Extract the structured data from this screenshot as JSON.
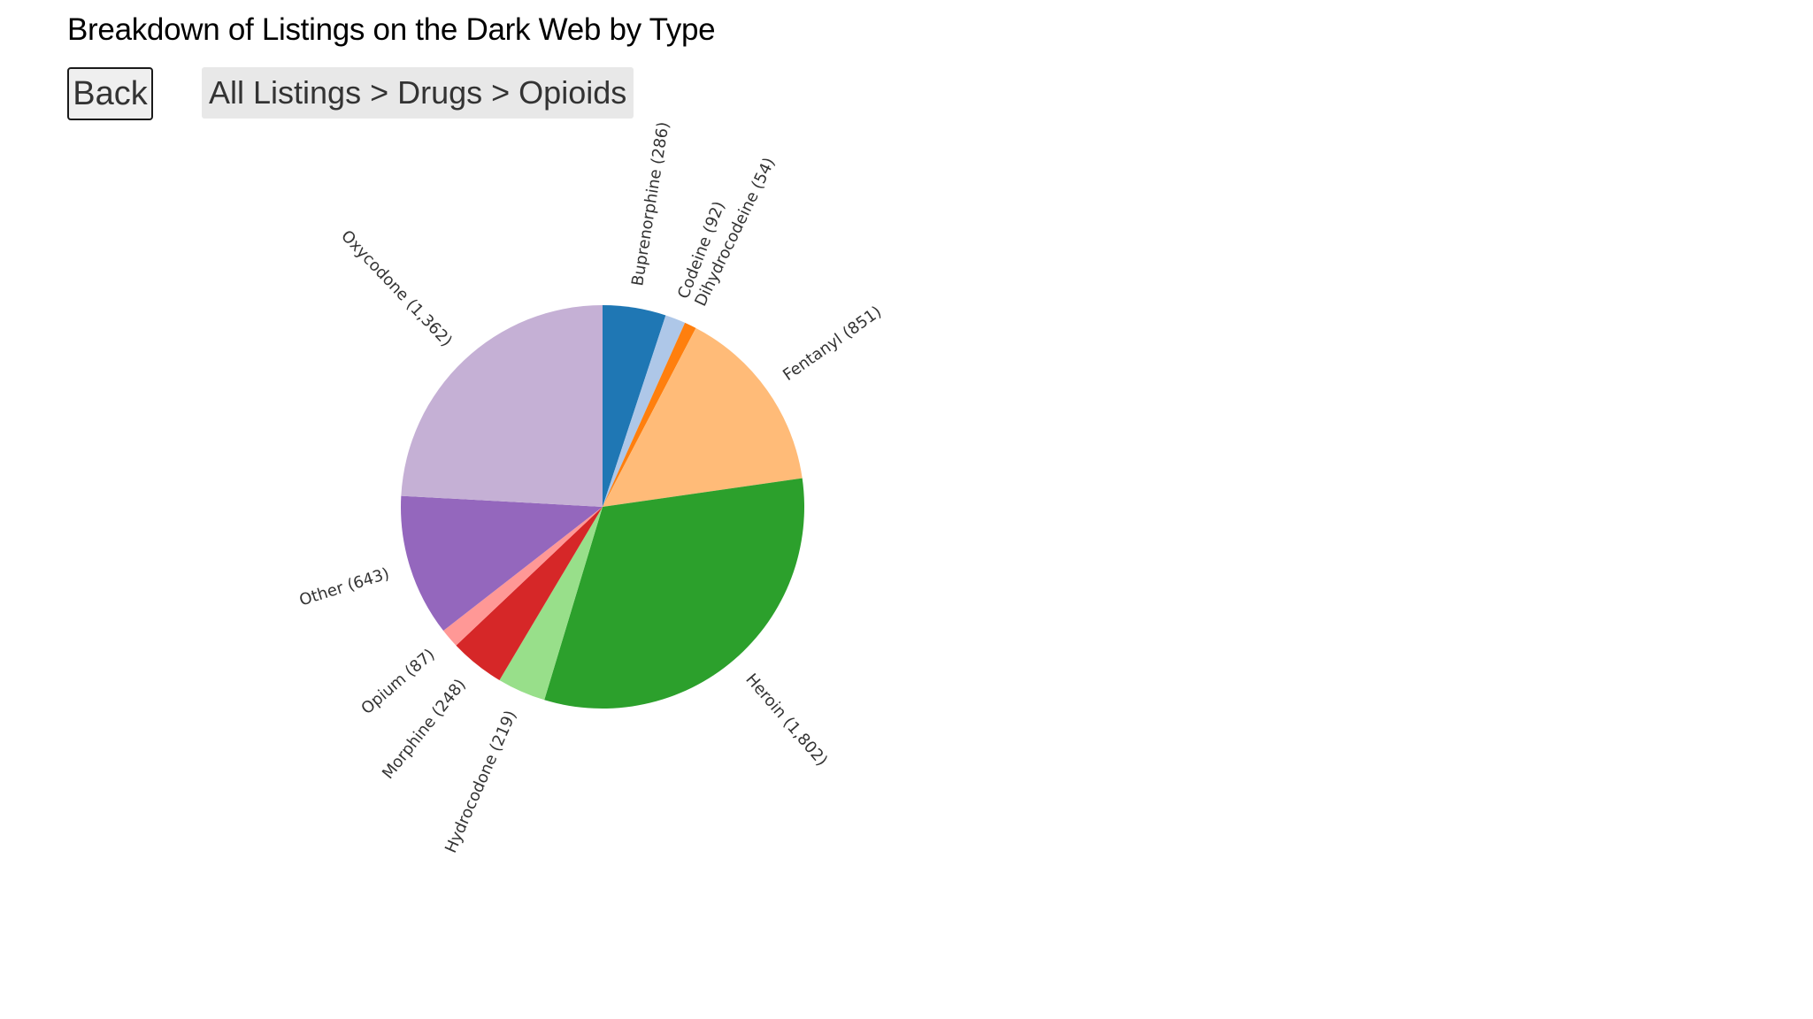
{
  "header": {
    "title": "Breakdown of Listings on the Dark Web by Type"
  },
  "nav": {
    "back_label": "Back",
    "breadcrumb": [
      "All Listings",
      "Drugs",
      "Opioids"
    ],
    "separator": ">"
  },
  "chart_data": {
    "type": "pie",
    "title": "Breakdown of Listings on the Dark Web by Type",
    "slices": [
      {
        "name": "Buprenorphine",
        "value": 286,
        "label": "Buprenorphine (286)",
        "color": "#1f77b4"
      },
      {
        "name": "Codeine",
        "value": 92,
        "label": "Codeine (92)",
        "color": "#aec7e8"
      },
      {
        "name": "Dihydrocodeine",
        "value": 54,
        "label": "Dihydrocodeine (54)",
        "color": "#ff7f0e"
      },
      {
        "name": "Fentanyl",
        "value": 851,
        "label": "Fentanyl (851)",
        "color": "#ffbb78"
      },
      {
        "name": "Heroin",
        "value": 1802,
        "label": "Heroin (1,802)",
        "color": "#2ca02c"
      },
      {
        "name": "Hydrocodone",
        "value": 219,
        "label": "Hydrocodone (219)",
        "color": "#98df8a"
      },
      {
        "name": "Morphine",
        "value": 248,
        "label": "Morphine (248)",
        "color": "#d62728"
      },
      {
        "name": "Opium",
        "value": 87,
        "label": "Opium (87)",
        "color": "#ff9896"
      },
      {
        "name": "Other",
        "value": 643,
        "label": "Other (643)",
        "color": "#9467bd"
      },
      {
        "name": "Oxycodone",
        "value": 1362,
        "label": "Oxycodone (1,362)",
        "color": "#c5b0d5"
      }
    ]
  }
}
